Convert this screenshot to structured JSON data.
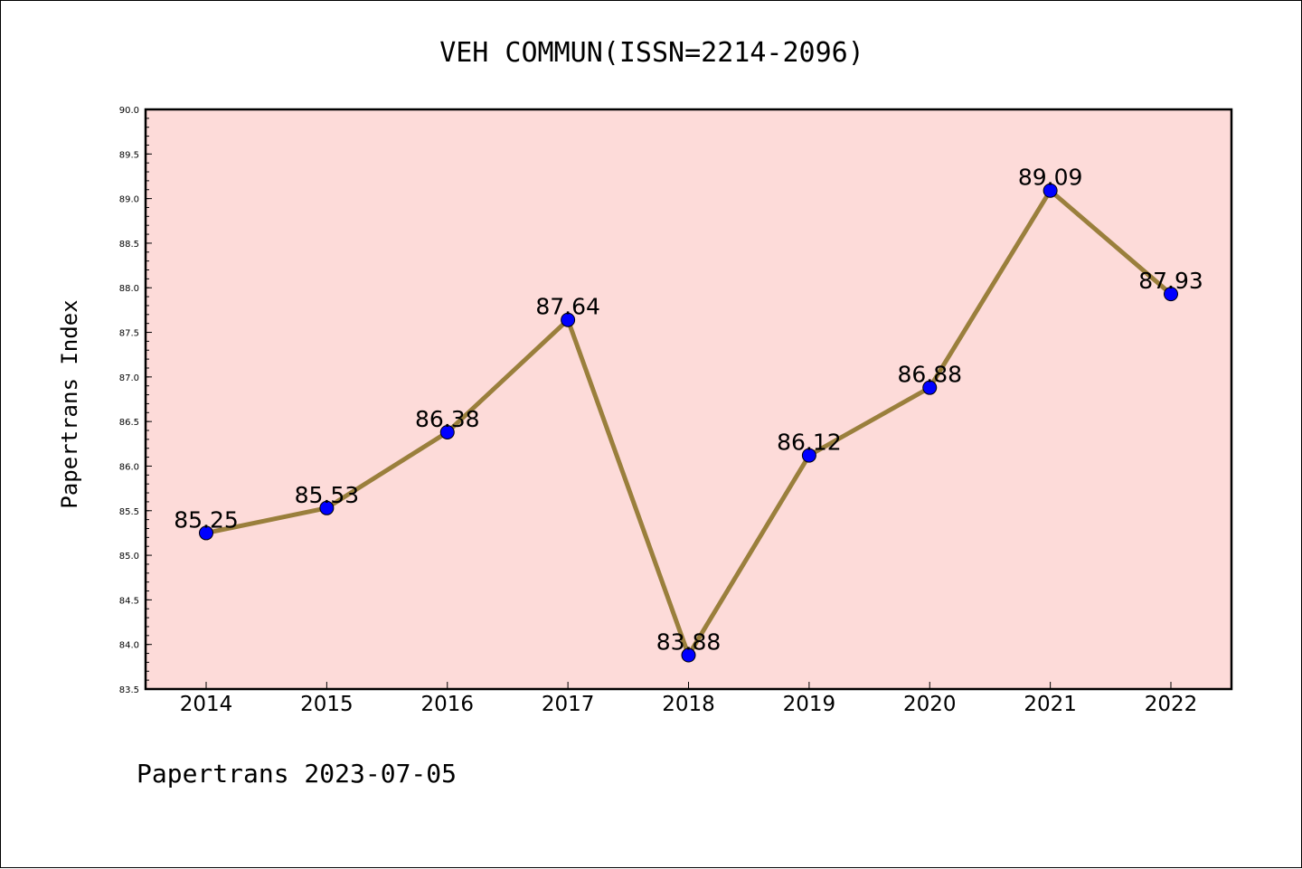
{
  "chart_data": {
    "type": "line",
    "title": "VEH COMMUN(ISSN=2214-2096)",
    "xlabel": "",
    "ylabel": "Papertrans Index",
    "categories": [
      "2014",
      "2015",
      "2016",
      "2017",
      "2018",
      "2019",
      "2020",
      "2021",
      "2022"
    ],
    "series": [
      {
        "values": [
          85.25,
          85.53,
          86.38,
          87.64,
          83.88,
          86.12,
          86.88,
          89.09,
          87.93
        ],
        "labels": [
          "85.25",
          "85.53",
          "86.38",
          "87.64",
          "83.88",
          "86.12",
          "86.88",
          "89.09",
          "87.93"
        ]
      }
    ],
    "ylim": [
      83.5,
      90.0
    ],
    "yticks": [
      "83.5",
      "84.0",
      "84.5",
      "85.0",
      "85.5",
      "86.0",
      "86.5",
      "87.0",
      "87.5",
      "88.0",
      "88.5",
      "89.0",
      "89.5",
      "90.0"
    ],
    "grid": false,
    "legend": "none",
    "colors": {
      "plot_background": "#fddbd9",
      "line": "#9a7f3c",
      "marker": "#0000ff"
    }
  },
  "footer": "Papertrans 2023-07-05"
}
